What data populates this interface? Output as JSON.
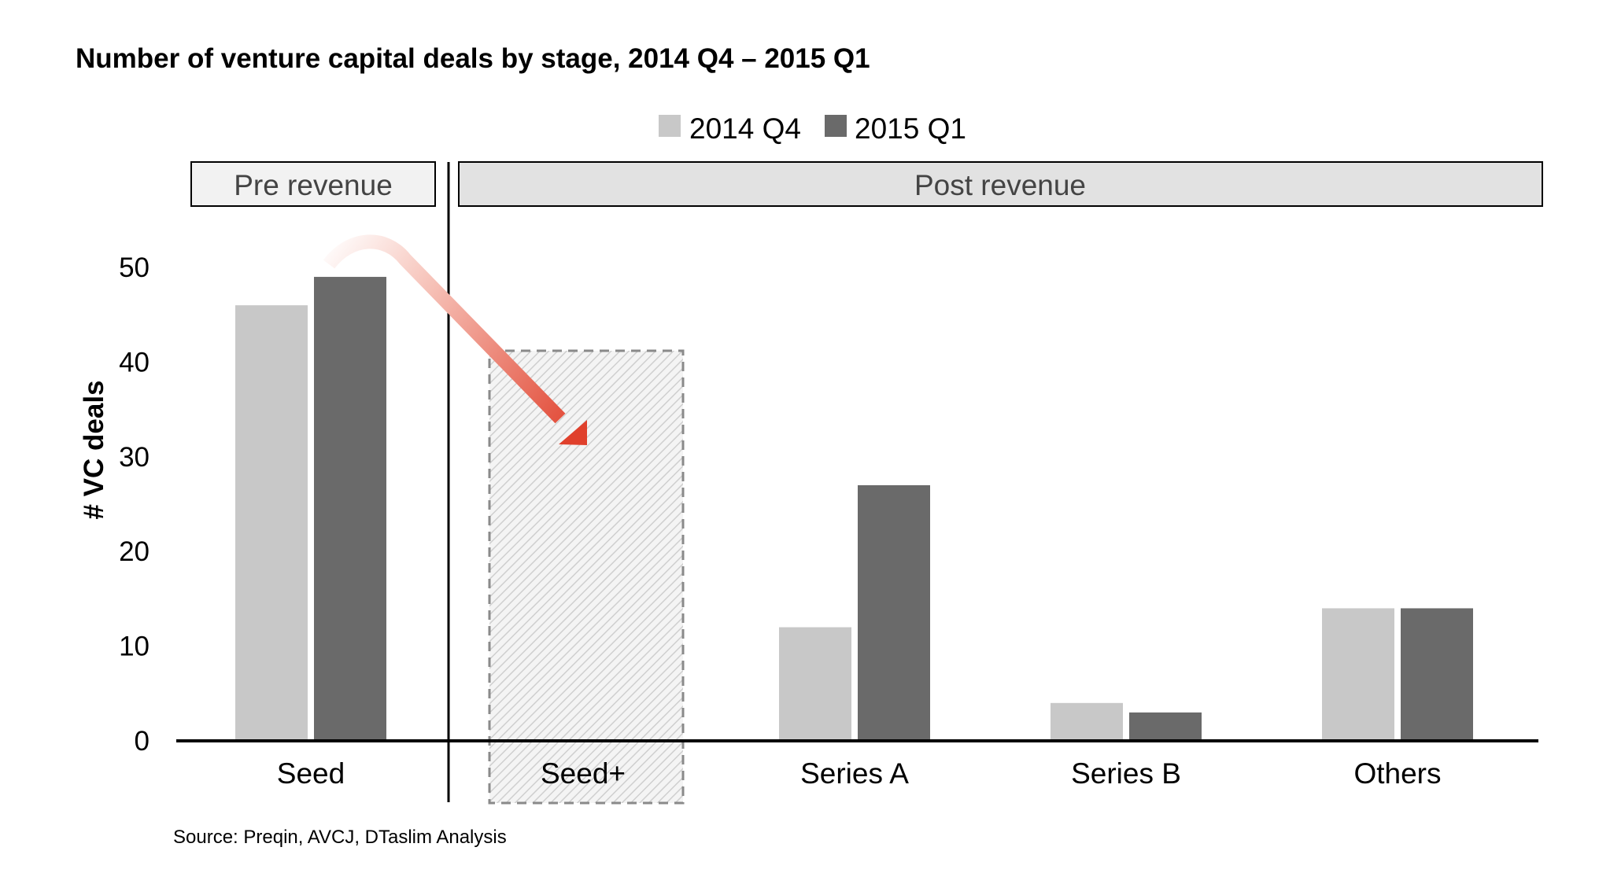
{
  "chart_data": {
    "type": "bar",
    "title": "Number of venture capital deals by stage, 2014 Q4 – 2015 Q1",
    "ylabel": "# VC deals",
    "xlabel": "",
    "ylim": [
      0,
      50
    ],
    "yticks": [
      "0",
      "10",
      "20",
      "30",
      "40",
      "50"
    ],
    "categories": [
      "Seed",
      "Seed+",
      "Series A",
      "Series B",
      "Others"
    ],
    "series": [
      {
        "name": "2014 Q4",
        "color": "#c8c8c8",
        "values": [
          46,
          null,
          12,
          4,
          14
        ]
      },
      {
        "name": "2015 Q1",
        "color": "#6a6a6a",
        "values": [
          49,
          null,
          27,
          3,
          14
        ]
      }
    ],
    "legend_position": "top-center",
    "grid": false,
    "regions": [
      {
        "label": "Pre revenue",
        "categories": [
          "Seed"
        ]
      },
      {
        "label": "Post revenue",
        "categories": [
          "Seed+",
          "Series A",
          "Series B",
          "Others"
        ]
      }
    ],
    "annotations": [
      {
        "type": "arrow",
        "from": "Seed",
        "to": "Seed+",
        "color": "#e0402c"
      },
      {
        "type": "placeholder-box",
        "category": "Seed+",
        "style": "dashed-hatched"
      }
    ],
    "source": "Source: Preqin, AVCJ, DTaslim Analysis"
  }
}
